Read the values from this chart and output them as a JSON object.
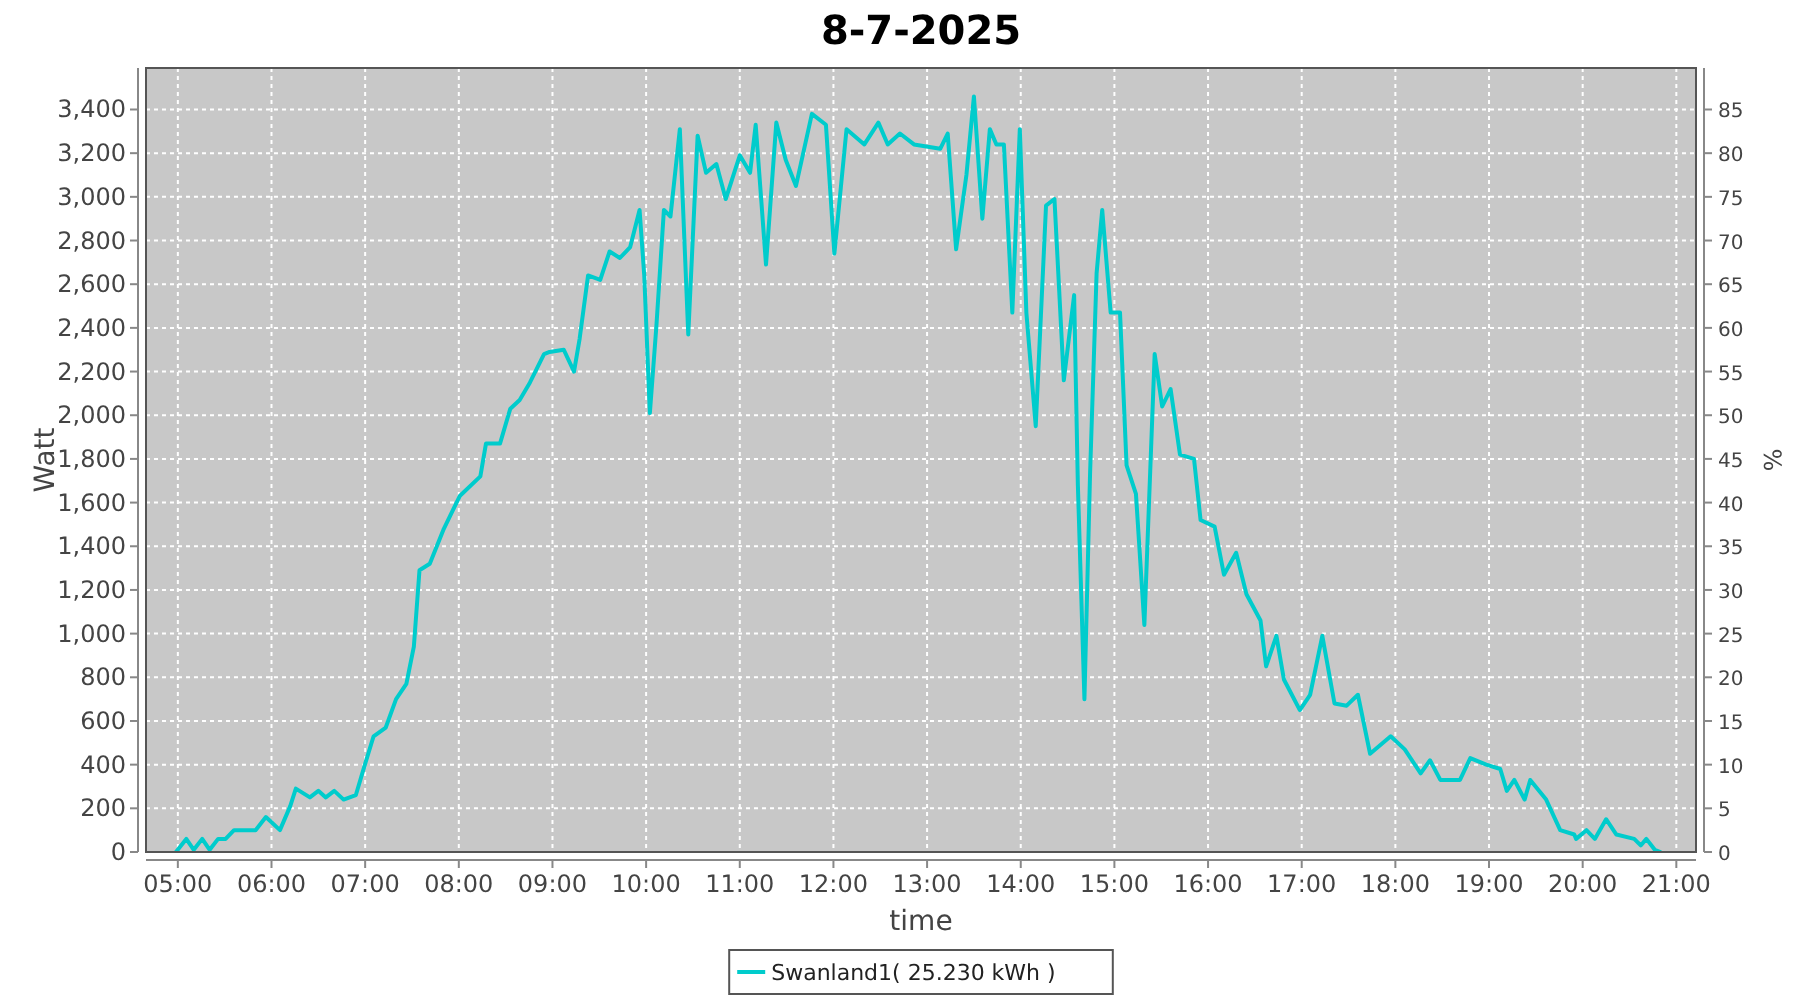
{
  "chart_data": {
    "type": "line",
    "title": "8-7-2025",
    "xlabel": "time",
    "ylabel": "Watt",
    "y2label": "%",
    "xlim": [
      4.66,
      21.21
    ],
    "xticks": [
      {
        "value": 5,
        "label": "05:00"
      },
      {
        "value": 6,
        "label": "06:00"
      },
      {
        "value": 7,
        "label": "07:00"
      },
      {
        "value": 8,
        "label": "08:00"
      },
      {
        "value": 9,
        "label": "09:00"
      },
      {
        "value": 10,
        "label": "10:00"
      },
      {
        "value": 11,
        "label": "11:00"
      },
      {
        "value": 12,
        "label": "12:00"
      },
      {
        "value": 13,
        "label": "13:00"
      },
      {
        "value": 14,
        "label": "14:00"
      },
      {
        "value": 15,
        "label": "15:00"
      },
      {
        "value": 16,
        "label": "16:00"
      },
      {
        "value": 17,
        "label": "17:00"
      },
      {
        "value": 18,
        "label": "18:00"
      },
      {
        "value": 19,
        "label": "19:00"
      },
      {
        "value": 20,
        "label": "20:00"
      },
      {
        "value": 21,
        "label": "21:00"
      }
    ],
    "ylim": [
      0,
      3590
    ],
    "yticks": [
      0,
      {
        "value": 200,
        "label": "200"
      },
      {
        "value": 400,
        "label": "400"
      },
      {
        "value": 600,
        "label": "600"
      },
      {
        "value": 800,
        "label": "800"
      },
      {
        "value": 1000,
        "label": "1,000"
      },
      {
        "value": 1200,
        "label": "1,200"
      },
      {
        "value": 1400,
        "label": "1,400"
      },
      {
        "value": 1600,
        "label": "1,600"
      },
      {
        "value": 1800,
        "label": "1,800"
      },
      {
        "value": 2000,
        "label": "2,000"
      },
      {
        "value": 2200,
        "label": "2,200"
      },
      {
        "value": 2400,
        "label": "2,400"
      },
      {
        "value": 2600,
        "label": "2,600"
      },
      {
        "value": 2800,
        "label": "2,800"
      },
      {
        "value": 3000,
        "label": "3,000"
      },
      {
        "value": 3200,
        "label": "3,200"
      },
      {
        "value": 3400,
        "label": "3,400"
      }
    ],
    "y2lim": [
      0,
      89.75
    ],
    "y2ticks": [
      0,
      5,
      10,
      15,
      20,
      25,
      30,
      35,
      40,
      45,
      50,
      55,
      60,
      65,
      70,
      75,
      80,
      85
    ],
    "grid": true,
    "legend": "bottom",
    "line_style": "solid",
    "series": [
      {
        "name": "Swanland1( 25.230 kWh )",
        "color": "#00cccc",
        "x": [
          4.98,
          5.09,
          5.17,
          5.26,
          5.34,
          5.43,
          5.51,
          5.6,
          5.83,
          5.94,
          6.09,
          6.2,
          6.26,
          6.41,
          6.5,
          6.58,
          6.67,
          6.77,
          6.9,
          6.99,
          7.09,
          7.22,
          7.33,
          7.44,
          7.52,
          7.58,
          7.69,
          7.84,
          8.01,
          8.23,
          8.29,
          8.44,
          8.55,
          8.65,
          8.76,
          8.91,
          8.97,
          9.12,
          9.23,
          9.29,
          9.38,
          9.51,
          9.61,
          9.72,
          9.83,
          9.93,
          9.98,
          10.04,
          10.11,
          10.19,
          10.26,
          10.36,
          10.45,
          10.55,
          10.64,
          10.75,
          10.85,
          11.0,
          11.11,
          11.17,
          11.28,
          11.39,
          11.49,
          11.6,
          11.77,
          11.92,
          12.01,
          12.14,
          12.33,
          12.48,
          12.58,
          12.71,
          12.86,
          13.14,
          13.22,
          13.31,
          13.42,
          13.5,
          13.59,
          13.67,
          13.74,
          13.82,
          13.91,
          13.99,
          14.06,
          14.16,
          14.27,
          14.36,
          14.46,
          14.57,
          14.61,
          14.68,
          14.74,
          14.81,
          14.87,
          14.96,
          15.06,
          15.13,
          15.23,
          15.32,
          15.43,
          15.51,
          15.6,
          15.7,
          15.85,
          15.92,
          16.07,
          16.17,
          16.3,
          16.41,
          16.56,
          16.62,
          16.73,
          16.81,
          16.98,
          17.09,
          17.22,
          17.35,
          17.48,
          17.6,
          17.73,
          17.95,
          18.1,
          18.27,
          18.37,
          18.48,
          18.69,
          18.8,
          18.97,
          19.12,
          19.19,
          19.27,
          19.38,
          19.44,
          19.61,
          19.76,
          19.91,
          19.93,
          20.04,
          20.13,
          20.25,
          20.36,
          20.55,
          20.62,
          20.68,
          20.77,
          20.83
        ],
        "values": [
          0,
          60,
          10,
          60,
          10,
          60,
          60,
          100,
          100,
          160,
          100,
          210,
          290,
          250,
          280,
          250,
          280,
          240,
          260,
          390,
          530,
          570,
          700,
          770,
          940,
          1290,
          1320,
          1480,
          1630,
          1720,
          1870,
          1870,
          2030,
          2070,
          2150,
          2280,
          2290,
          2300,
          2200,
          2350,
          2640,
          2620,
          2750,
          2720,
          2770,
          2940,
          2640,
          2010,
          2410,
          2940,
          2910,
          3310,
          2370,
          3280,
          3110,
          3150,
          2990,
          3190,
          3110,
          3330,
          2690,
          3340,
          3170,
          3050,
          3380,
          3330,
          2740,
          3310,
          3240,
          3340,
          3240,
          3290,
          3240,
          3220,
          3290,
          2760,
          3100,
          3460,
          2900,
          3310,
          3240,
          3240,
          2470,
          3310,
          2470,
          1950,
          2960,
          2990,
          2160,
          2550,
          1680,
          700,
          1730,
          2650,
          2940,
          2470,
          2470,
          1770,
          1640,
          1040,
          2280,
          2040,
          2120,
          1820,
          1800,
          1520,
          1490,
          1270,
          1370,
          1180,
          1060,
          850,
          990,
          790,
          650,
          720,
          990,
          680,
          670,
          720,
          450,
          530,
          470,
          360,
          420,
          330,
          330,
          430,
          400,
          380,
          280,
          330,
          240,
          330,
          240,
          100,
          80,
          60,
          100,
          60,
          150,
          80,
          60,
          30,
          60,
          10,
          0
        ]
      }
    ]
  }
}
